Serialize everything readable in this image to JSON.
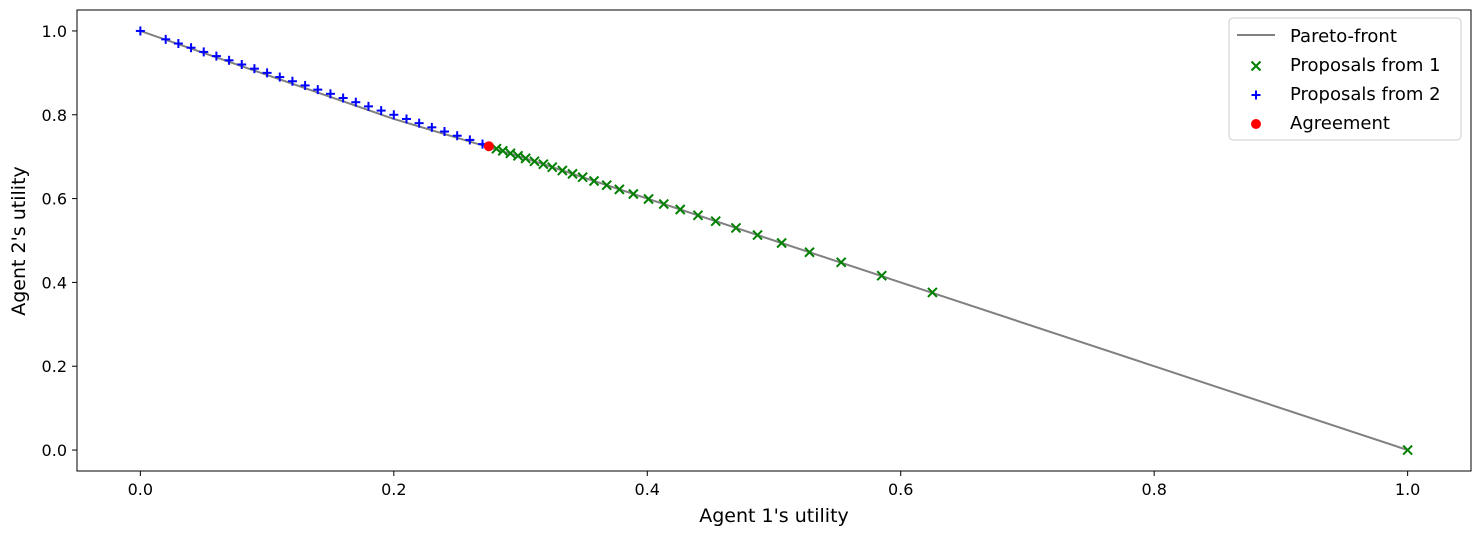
{
  "chart_data": {
    "type": "scatter",
    "title": "",
    "xlabel": "Agent 1's utility",
    "ylabel": "Agent 2's utility",
    "xlim": [
      -0.05,
      1.05
    ],
    "ylim": [
      -0.05,
      1.05
    ],
    "xticks": [
      0.0,
      0.2,
      0.4,
      0.6,
      0.8,
      1.0
    ],
    "yticks": [
      0.0,
      0.2,
      0.4,
      0.6,
      0.8,
      1.0
    ],
    "xtick_labels": [
      "0.0",
      "0.2",
      "0.4",
      "0.6",
      "0.8",
      "1.0"
    ],
    "ytick_labels": [
      "0.0",
      "0.2",
      "0.4",
      "0.6",
      "0.8",
      "1.0"
    ],
    "grid": false,
    "legend_position": "top-right",
    "legend": [
      "Pareto-front",
      "Proposals from 1",
      "Proposals from 2",
      "Agreement"
    ],
    "series": [
      {
        "name": "Pareto-front",
        "kind": "line",
        "color": "#808080",
        "points": [
          [
            0.0,
            1.0
          ],
          [
            0.2,
            0.79
          ],
          [
            0.3,
            0.7
          ],
          [
            0.4,
            0.6
          ],
          [
            0.6,
            0.4
          ],
          [
            0.8,
            0.2
          ],
          [
            1.0,
            0.0
          ]
        ]
      },
      {
        "name": "Proposals from 1",
        "kind": "marker",
        "marker": "x",
        "color": "#008000",
        "points": [
          [
            1.0,
            0.0
          ],
          [
            0.625,
            0.376
          ],
          [
            0.585,
            0.416
          ],
          [
            0.553,
            0.448
          ],
          [
            0.528,
            0.472
          ],
          [
            0.506,
            0.494
          ],
          [
            0.487,
            0.513
          ],
          [
            0.47,
            0.53
          ],
          [
            0.454,
            0.546
          ],
          [
            0.44,
            0.56
          ],
          [
            0.426,
            0.574
          ],
          [
            0.413,
            0.587
          ],
          [
            0.401,
            0.599
          ],
          [
            0.389,
            0.611
          ],
          [
            0.378,
            0.622
          ],
          [
            0.368,
            0.632
          ],
          [
            0.358,
            0.642
          ],
          [
            0.349,
            0.651
          ],
          [
            0.341,
            0.659
          ],
          [
            0.333,
            0.667
          ],
          [
            0.325,
            0.675
          ],
          [
            0.318,
            0.682
          ],
          [
            0.311,
            0.689
          ],
          [
            0.304,
            0.696
          ],
          [
            0.298,
            0.702
          ],
          [
            0.292,
            0.708
          ],
          [
            0.286,
            0.714
          ],
          [
            0.281,
            0.719
          ]
        ]
      },
      {
        "name": "Proposals from 2",
        "kind": "marker",
        "marker": "+",
        "color": "#0000ff",
        "points": [
          [
            0.0,
            1.0
          ],
          [
            0.02,
            0.98
          ],
          [
            0.03,
            0.97
          ],
          [
            0.04,
            0.96
          ],
          [
            0.05,
            0.95
          ],
          [
            0.06,
            0.94
          ],
          [
            0.07,
            0.93
          ],
          [
            0.08,
            0.92
          ],
          [
            0.09,
            0.91
          ],
          [
            0.1,
            0.9
          ],
          [
            0.11,
            0.89
          ],
          [
            0.12,
            0.88
          ],
          [
            0.13,
            0.87
          ],
          [
            0.14,
            0.86
          ],
          [
            0.15,
            0.85
          ],
          [
            0.16,
            0.84
          ],
          [
            0.17,
            0.83
          ],
          [
            0.18,
            0.82
          ],
          [
            0.19,
            0.81
          ],
          [
            0.2,
            0.8
          ],
          [
            0.21,
            0.79
          ],
          [
            0.22,
            0.78
          ],
          [
            0.23,
            0.77
          ],
          [
            0.24,
            0.76
          ],
          [
            0.25,
            0.75
          ],
          [
            0.26,
            0.74
          ],
          [
            0.27,
            0.73
          ],
          [
            0.275,
            0.725
          ]
        ]
      },
      {
        "name": "Agreement",
        "kind": "marker",
        "marker": "o",
        "color": "#ff0000",
        "points": [
          [
            0.275,
            0.725
          ]
        ]
      }
    ]
  }
}
